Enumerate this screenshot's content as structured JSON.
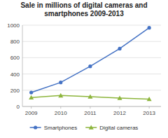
{
  "chart_data": {
    "type": "line",
    "title": "Sale in millions of digital cameras and\nsmartphones 2009-2013",
    "x": [
      2009,
      2010,
      2011,
      2012,
      2013
    ],
    "xlim": [
      2008.7,
      2013.4
    ],
    "xticks": [
      2009,
      2010,
      2011,
      2012,
      2013
    ],
    "ylim": [
      0,
      1000
    ],
    "yticks": [
      0,
      200,
      400,
      600,
      800,
      1000
    ],
    "grid": true,
    "legend": "bottom",
    "series": [
      {
        "name": "Smartphones",
        "color": "#4472c4",
        "marker": "circle",
        "values": [
          172,
          296,
          494,
          712,
          968
        ]
      },
      {
        "name": "Digital cameras",
        "color": "#8db53c",
        "marker": "triangle",
        "values": [
          110,
          135,
          121,
          103,
          90
        ]
      }
    ]
  }
}
